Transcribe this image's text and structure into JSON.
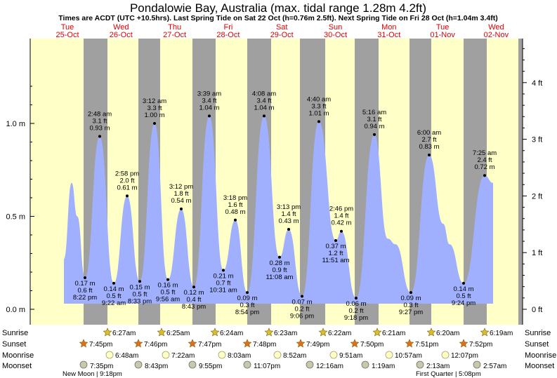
{
  "title": "Pondalowie Bay, Australia (max. tidal range 1.28m 4.2ft)",
  "subtitle": "Times are ACDT (UTC +10.5hrs). Last Spring Tide on Sat 22 Oct (h=0.76m 2.5ft). Next Spring Tide on Fri 28 Oct (h=1.04m 3.4ft)",
  "colors": {
    "day": "#ffffc8",
    "night": "#a0a0a0",
    "tide_fill": "#a0b0ff",
    "day_header": "#e00000"
  },
  "days": [
    {
      "dow": "Tue",
      "date": "25-Oct"
    },
    {
      "dow": "Wed",
      "date": "26-Oct"
    },
    {
      "dow": "Thu",
      "date": "27-Oct"
    },
    {
      "dow": "Fri",
      "date": "28-Oct"
    },
    {
      "dow": "Sat",
      "date": "29-Oct"
    },
    {
      "dow": "Sun",
      "date": "30-Oct"
    },
    {
      "dow": "Mon",
      "date": "31-Oct"
    },
    {
      "dow": "Tue",
      "date": "01-Nov"
    },
    {
      "dow": "Wed",
      "date": "02-Nov"
    }
  ],
  "chart_data": {
    "type": "area",
    "y_unit_left": "m",
    "y_unit_right": "ft",
    "ylim_m": [
      -0.06,
      1.2
    ],
    "yticks_left": [
      "0.0 m",
      "0.5 m",
      "1.0 m"
    ],
    "yticks_right": [
      "0 ft",
      "1 ft",
      "2 ft",
      "3 ft",
      "4 ft"
    ],
    "annotated_points": [
      {
        "time": "8:22 pm",
        "ft": "0.6 ft",
        "m": "0.17 m",
        "value_m": 0.17,
        "type": "low"
      },
      {
        "time": "2:48 am",
        "ft": "3.1 ft",
        "m": "0.93 m",
        "value_m": 0.93,
        "type": "high"
      },
      {
        "time": "9:22 am",
        "ft": "0.5 ft",
        "m": "0.14 m",
        "value_m": 0.14,
        "type": "low"
      },
      {
        "time": "2:58 pm",
        "ft": "2.0 ft",
        "m": "0.61 m",
        "value_m": 0.61,
        "type": "high"
      },
      {
        "time": "8:33 pm",
        "ft": "0.5 ft",
        "m": "0.15 m",
        "value_m": 0.15,
        "type": "low"
      },
      {
        "time": "3:12 am",
        "ft": "3.3 ft",
        "m": "1.00 m",
        "value_m": 1.0,
        "type": "high"
      },
      {
        "time": "9:56 am",
        "ft": "0.5 ft",
        "m": "0.16 m",
        "value_m": 0.16,
        "type": "low"
      },
      {
        "time": "3:12 pm",
        "ft": "1.8 ft",
        "m": "0.54 m",
        "value_m": 0.54,
        "type": "high"
      },
      {
        "time": "8:43 pm",
        "ft": "0.4 ft",
        "m": "0.12 m",
        "value_m": 0.12,
        "type": "low"
      },
      {
        "time": "3:39 am",
        "ft": "3.4 ft",
        "m": "1.04 m",
        "value_m": 1.04,
        "type": "high"
      },
      {
        "time": "10:31 am",
        "ft": "0.7 ft",
        "m": "0.21 m",
        "value_m": 0.21,
        "type": "low"
      },
      {
        "time": "3:18 pm",
        "ft": "1.6 ft",
        "m": "0.48 m",
        "value_m": 0.48,
        "type": "high"
      },
      {
        "time": "8:54 pm",
        "ft": "0.3 ft",
        "m": "0.09 m",
        "value_m": 0.09,
        "type": "low"
      },
      {
        "time": "4:08 am",
        "ft": "3.4 ft",
        "m": "1.04 m",
        "value_m": 1.04,
        "type": "high"
      },
      {
        "time": "11:08 am",
        "ft": "0.9 ft",
        "m": "0.28 m",
        "value_m": 0.28,
        "type": "low"
      },
      {
        "time": "3:13 pm",
        "ft": "1.4 ft",
        "m": "0.43 m",
        "value_m": 0.43,
        "type": "high"
      },
      {
        "time": "9:06 pm",
        "ft": "0.2 ft",
        "m": "0.07 m",
        "value_m": 0.07,
        "type": "low"
      },
      {
        "time": "4:40 am",
        "ft": "3.3 ft",
        "m": "1.01 m",
        "value_m": 1.01,
        "type": "high"
      },
      {
        "time": "11:51 am",
        "ft": "1.2 ft",
        "m": "0.37 m",
        "value_m": 0.37,
        "type": "low"
      },
      {
        "time": "2:46 pm",
        "ft": "1.4 ft",
        "m": "0.42 m",
        "value_m": 0.42,
        "type": "high"
      },
      {
        "time": "9:18 pm",
        "ft": "0.2 ft",
        "m": "0.06 m",
        "value_m": 0.06,
        "type": "low"
      },
      {
        "time": "5:16 am",
        "ft": "3.1 ft",
        "m": "0.94 m",
        "value_m": 0.94,
        "type": "high"
      },
      {
        "time": "9:27 pm",
        "ft": "0.3 ft",
        "m": "0.09 m",
        "value_m": 0.09,
        "type": "low"
      },
      {
        "time": "6:00 am",
        "ft": "2.7 ft",
        "m": "0.83 m",
        "value_m": 0.83,
        "type": "high"
      },
      {
        "time": "9:24 pm",
        "ft": "0.5 ft",
        "m": "0.14 m",
        "value_m": 0.14,
        "type": "low"
      },
      {
        "time": "7:25 am",
        "ft": "2.4 ft",
        "m": "0.72 m",
        "value_m": 0.72,
        "type": "high"
      }
    ]
  },
  "astro": {
    "row_labels": [
      "Sunrise",
      "Sunset",
      "Moonrise",
      "Moonset"
    ],
    "sunrise": [
      "6:27am",
      "6:25am",
      "6:24am",
      "6:23am",
      "6:22am",
      "6:21am",
      "6:20am",
      "6:19am"
    ],
    "sunset": [
      "7:45pm",
      "7:46pm",
      "7:47pm",
      "7:48pm",
      "7:49pm",
      "7:50pm",
      "7:51pm",
      "7:52pm"
    ],
    "moonrise": [
      "6:48am",
      "7:22am",
      "8:03am",
      "8:52am",
      "9:51am",
      "10:57am",
      "12:07pm"
    ],
    "moonset": [
      "7:35pm",
      "8:43pm",
      "9:55pm",
      "11:07pm",
      "12:16am",
      "1:19am",
      "2:13am",
      "2:57am"
    ],
    "new_moon": "New Moon | 9:18pm",
    "first_quarter": "First Quarter | 5:08pm"
  }
}
